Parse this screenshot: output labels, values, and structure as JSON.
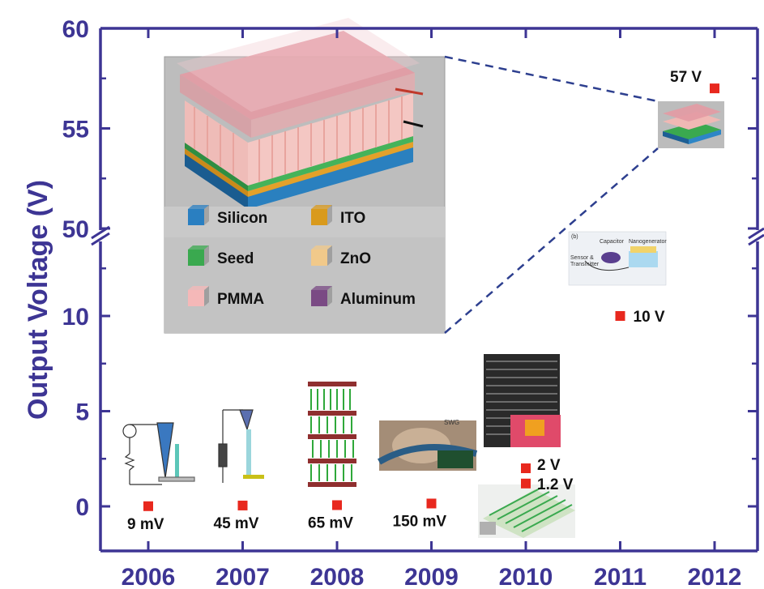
{
  "chart_data": {
    "type": "scatter",
    "ylabel": "Output Voltage (V)",
    "xlabel": "",
    "x_ticks": [
      "2006",
      "2007",
      "2008",
      "2009",
      "2010",
      "2011",
      "2012"
    ],
    "y_ticks": [
      "0",
      "5",
      "10",
      "50",
      "55",
      "60"
    ],
    "y_axis_broken": true,
    "ylim_lower": [
      -1,
      14
    ],
    "ylim_upper": [
      50,
      60
    ],
    "series": [
      {
        "points": [
          {
            "x": 2006,
            "y": 0.009,
            "label": "9 mV"
          },
          {
            "x": 2007,
            "y": 0.045,
            "label": "45 mV"
          },
          {
            "x": 2008,
            "y": 0.065,
            "label": "65 mV"
          },
          {
            "x": 2009,
            "y": 0.15,
            "label": "150 mV"
          },
          {
            "x": 2010,
            "y": 1.2,
            "label": "1.2 V"
          },
          {
            "x": 2010,
            "y": 2,
            "label": "2 V"
          },
          {
            "x": 2011,
            "y": 10,
            "label": "10 V"
          },
          {
            "x": 2012,
            "y": 57,
            "label": "57 V"
          }
        ]
      }
    ],
    "colors": {
      "axis": "#3d3594",
      "marker": "#e8281e"
    }
  },
  "inset": {
    "legend": [
      {
        "label": "Silicon",
        "color": "#2a7fc1"
      },
      {
        "label": "ITO",
        "color": "#d99a1c"
      },
      {
        "label": "Seed",
        "color": "#3aa94f"
      },
      {
        "label": "ZnO",
        "color": "#f1c98a"
      },
      {
        "label": "PMMA",
        "color": "#f5b8b8"
      },
      {
        "label": "Aluminum",
        "color": "#7a4a84"
      }
    ],
    "diagram_2011": {
      "labels": [
        "(b)",
        "Capacitor",
        "Nanogenerator",
        "Sensor &",
        "Transmitter"
      ]
    },
    "diagram_2009": {
      "labels": [
        "SWG"
      ]
    }
  }
}
